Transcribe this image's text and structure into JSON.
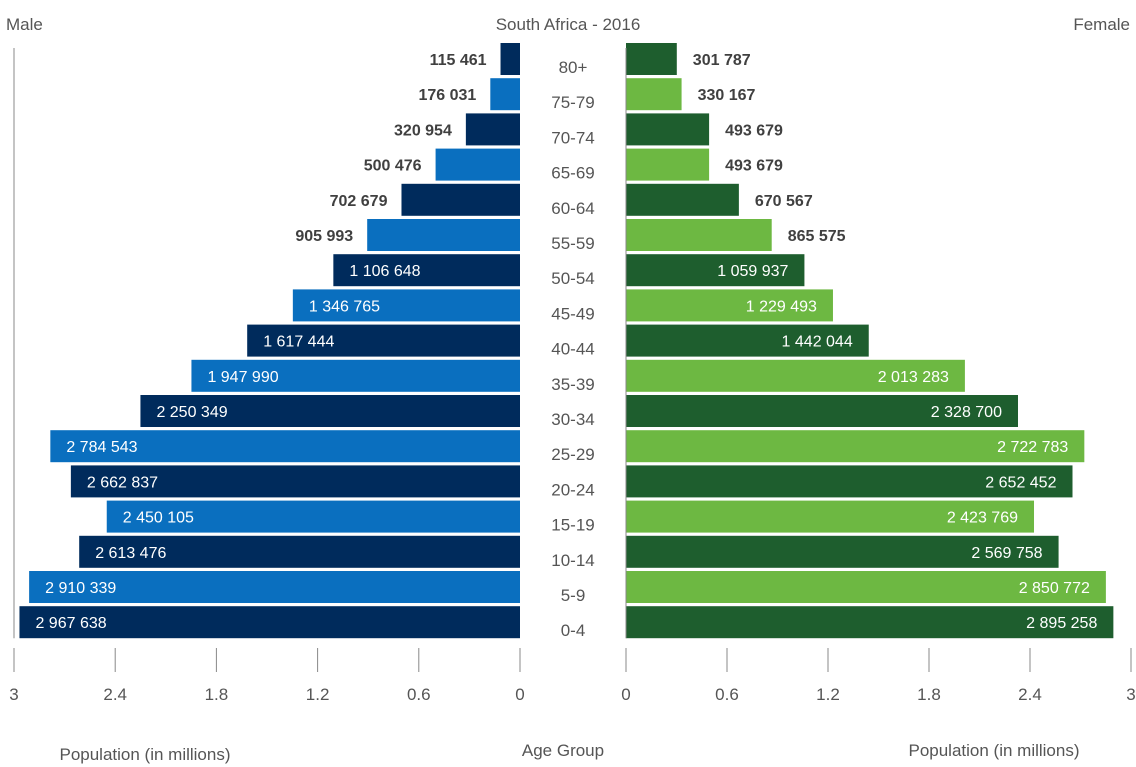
{
  "chart_data": {
    "type": "bar",
    "title": "South Africa - 2016",
    "left_label": "Male",
    "right_label": "Female",
    "xlabel_left": "Population (in millions)",
    "xlabel_right": "Population (in millions)",
    "center_label": "Age Group",
    "xlim": [
      0,
      3
    ],
    "xticks": [
      0,
      0.6,
      1.2,
      1.8,
      2.4,
      3
    ],
    "xtick_labels": [
      "0",
      "0.6",
      "1.2",
      "1.8",
      "2.4",
      "3"
    ],
    "categories": [
      "0-4",
      "5-9",
      "10-14",
      "15-19",
      "20-24",
      "25-29",
      "30-34",
      "35-39",
      "40-44",
      "45-49",
      "50-54",
      "55-59",
      "60-64",
      "65-69",
      "70-74",
      "75-79",
      "80+"
    ],
    "series": [
      {
        "name": "Male",
        "values": [
          2967638,
          2910339,
          2613476,
          2450105,
          2662837,
          2784543,
          2250349,
          1947990,
          1617444,
          1346765,
          1106648,
          905993,
          702679,
          500476,
          320954,
          176031,
          115461
        ],
        "labels": [
          "2 967 638",
          "2 910 339",
          "2 613 476",
          "2 450 105",
          "2 662 837",
          "2 784 543",
          "2 250 349",
          "1 947 990",
          "1 617 444",
          "1 346 765",
          "1 106 648",
          "905 993",
          "702 679",
          "500 476",
          "320 954",
          "176 031",
          "115 461"
        ],
        "colors": [
          "#002b5c",
          "#0a6fbf"
        ]
      },
      {
        "name": "Female",
        "values": [
          2895258,
          2850772,
          2569758,
          2423769,
          2652452,
          2722783,
          2328700,
          2013283,
          1442044,
          1229493,
          1059937,
          865575,
          670567,
          493679,
          493679,
          330167,
          301787
        ],
        "labels": [
          "2 895 258",
          "2 850 772",
          "2 569 758",
          "2 423 769",
          "2 652 452",
          "2 722 783",
          "2 328 700",
          "2 013 283",
          "1 442 044",
          "1 229 493",
          "1 059 937",
          "865 575",
          "670 567",
          "493 679",
          "493 679",
          "330 167",
          "301 787"
        ],
        "colors": [
          "#1e5e2e",
          "#6db842"
        ]
      }
    ],
    "label_color_inside": "#ffffff",
    "label_color_outside": "#404040",
    "text_color": "#555555",
    "axis_color": "#888888",
    "grid": false
  }
}
